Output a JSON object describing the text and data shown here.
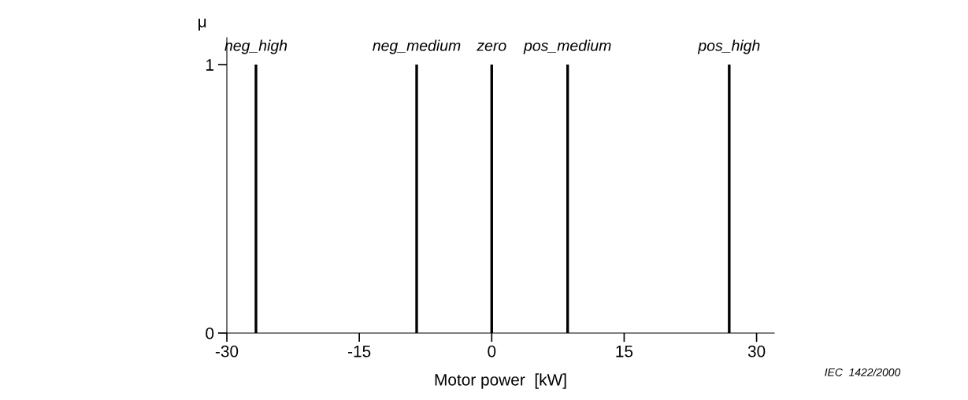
{
  "chart_data": {
    "type": "bar",
    "xlabel": "Motor power  [kW]",
    "ylabel": "μ",
    "series": [
      {
        "name": "neg_high",
        "color": "#000000",
        "x": [
          -26.7
        ],
        "values": [
          1
        ]
      },
      {
        "name": "neg_medium",
        "color": "#000000",
        "x": [
          -8.5
        ],
        "values": [
          1
        ]
      },
      {
        "name": "zero",
        "color": "#000000",
        "x": [
          0
        ],
        "values": [
          1
        ]
      },
      {
        "name": "pos_medium",
        "color": "#000000",
        "x": [
          8.6
        ],
        "values": [
          1
        ]
      },
      {
        "name": "pos_high",
        "color": "#000000",
        "x": [
          26.9
        ],
        "values": [
          1
        ]
      }
    ],
    "xlim": [
      -30,
      32
    ],
    "xticks": [
      -30,
      -15,
      0,
      15,
      30
    ],
    "ylim": [
      0,
      1.1
    ],
    "yticks": [
      0,
      1
    ],
    "grid": false,
    "legend": false,
    "annotations": [
      "IEC  1422/2000"
    ]
  }
}
